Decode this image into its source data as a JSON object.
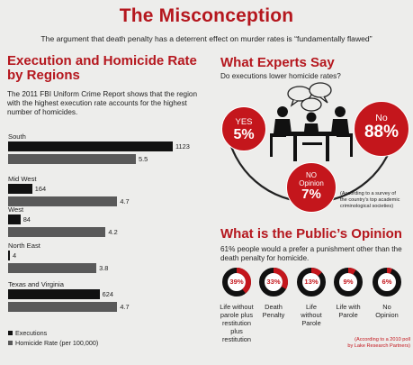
{
  "header": {
    "title": "The Misconception",
    "subtitle": "The argument that death penalty has a deterrent effect on murder rates is “fundamentally flawed”"
  },
  "left": {
    "heading_line1": "Execution and Homicide Rate",
    "heading_line2": "by Regions",
    "intro_line1": "The 2011 FBI Uniform Crime Report shows that the region",
    "intro_line2": "with the highest execution rate accounts for the highest",
    "intro_line3": "number of homicides.",
    "legend": {
      "executions": "Executions",
      "homicide_rate": "Homicide Rate (per 100,000)"
    },
    "colors": {
      "executions": "#111111",
      "homicide_rate": "#595959"
    }
  },
  "chart_data": {
    "type": "bar",
    "categories": [
      "South",
      "Mid West",
      "West",
      "North East",
      "Texas and Virginia"
    ],
    "series": [
      {
        "name": "Executions",
        "values": [
          1123,
          164,
          84,
          4,
          624
        ]
      },
      {
        "name": "Homicide Rate (per 100,000)",
        "values": [
          5.5,
          4.7,
          4.2,
          3.8,
          4.7
        ]
      }
    ],
    "value_labels": {
      "executions": [
        "1123",
        "164",
        "84",
        "4",
        "624"
      ],
      "homicide_rate": [
        "5.5",
        "4.7",
        "4.2",
        "3.8",
        "4.7"
      ]
    },
    "legend_position": "bottom-left"
  },
  "experts": {
    "heading": "What Experts Say",
    "question": "Do executions lower homicide rates?",
    "yes_label": "YES",
    "yes_pct": "5%",
    "no_label": "No",
    "no_pct": "88%",
    "noop_label_line1": "NO",
    "noop_label_line2": "Opinion",
    "noop_pct": "7%",
    "note_line1": "(According to a survey of",
    "note_line2": "the country's top academic",
    "note_line3": "criminological societies)",
    "accent": "#c4161c"
  },
  "opinion": {
    "heading": "What is the Public’s Opinion",
    "intro_line1": "61% people would a prefer a punishment other than the",
    "intro_line2": "death penalty for homicide.",
    "options": [
      {
        "pct": "39%",
        "value": 39,
        "lines": [
          "Life without",
          "parole plus",
          "restitution",
          "plus",
          "restitution"
        ]
      },
      {
        "pct": "33%",
        "value": 33,
        "lines": [
          "Death",
          "Penalty"
        ]
      },
      {
        "pct": "13%",
        "value": 13,
        "lines": [
          "Life",
          "without",
          "Parole"
        ]
      },
      {
        "pct": "9%",
        "value": 9,
        "lines": [
          "Life with",
          "Parole"
        ]
      },
      {
        "pct": "6%",
        "value": 6,
        "lines": [
          "No",
          "Opinion"
        ]
      }
    ],
    "note_line1": "(According to a 2010 poll",
    "note_line2": "by Lake Research Partners)"
  }
}
